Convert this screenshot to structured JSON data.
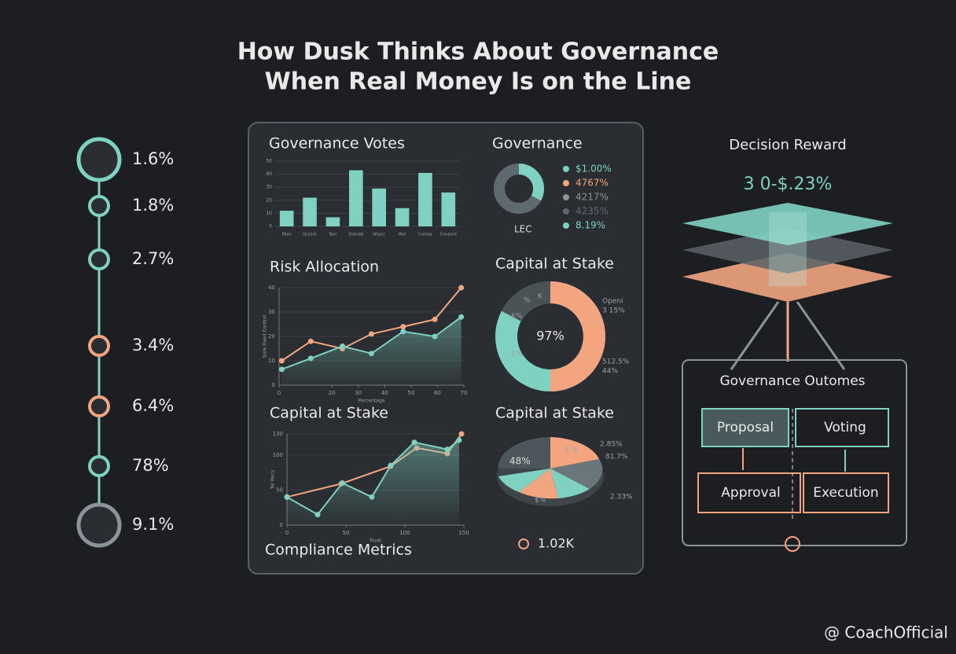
{
  "title_lines": [
    "How Dusk Thinks About Governance",
    "When Real Money Is on the Line"
  ],
  "timeline": [
    "1.6%",
    "1.8%",
    "2.7%",
    "3.4%",
    "6.4%",
    "78%",
    "9.1%"
  ],
  "bar_chart": {
    "type": "bar",
    "title": "Governance Votes",
    "categories": [
      "Mian",
      "Ocisick",
      "Nan",
      "Standal",
      "Nhanc",
      "Mat",
      "Conida",
      "Conpore"
    ],
    "values": [
      12,
      22,
      7,
      43,
      29,
      14,
      41,
      26
    ],
    "color": "#7fd1c2",
    "ylim": [
      0,
      50
    ],
    "yticks": [
      0,
      10,
      20,
      30,
      40,
      50
    ]
  },
  "governance_donut": {
    "title": "Governance",
    "center_label": "LEC",
    "legend": [
      {
        "label": "$1.00%",
        "color": "#7fd1c2"
      },
      {
        "label": "4767%",
        "color": "#f2a57f"
      },
      {
        "label": "4217%",
        "color": "#8a9499"
      },
      {
        "label": "4235%",
        "color": "#5f6a70"
      },
      {
        "label": "8.19%",
        "color": "#7fd1c2"
      }
    ]
  },
  "risk_chart": {
    "type": "line",
    "title": "Risk Allocation",
    "xlabel": "Percentage",
    "ylabel": "Sore Fixed Control",
    "xlim": [
      0,
      70
    ],
    "ylim": [
      0,
      40
    ],
    "xticks": [
      0,
      20,
      30,
      40,
      50,
      60,
      70
    ],
    "yticks": [
      0,
      10,
      20,
      30,
      40
    ],
    "series": [
      {
        "name": "Risk",
        "color": "#f2a57f",
        "x": [
          1,
          12,
          24,
          35,
          47,
          59,
          69
        ],
        "values": [
          10,
          18,
          15,
          21,
          24,
          27,
          40
        ]
      },
      {
        "name": "Allocation",
        "color": "#7fd1c2",
        "x": [
          1,
          12,
          24,
          35,
          47,
          59,
          69
        ],
        "values": [
          6.5,
          11,
          16,
          13,
          22,
          20,
          28
        ]
      }
    ]
  },
  "stake_donut": {
    "title": "Capital at Stake",
    "center_label": "97%",
    "labels": [
      "Openi",
      "3 15%",
      "512.5%",
      "44%",
      "$%",
      "$%",
      "%",
      "K"
    ]
  },
  "stake_line": {
    "type": "line",
    "title": "Capital at Stake",
    "xlabel": "Trusk",
    "ylabel": "Tel Recu",
    "xlim": [
      0,
      150
    ],
    "ylim": [
      0,
      130
    ],
    "xticks": [
      0,
      50,
      100,
      150
    ],
    "yticks": [
      0,
      50,
      100,
      130
    ],
    "series": [
      {
        "name": "Stake",
        "color": "#f2a57f",
        "x": [
          0,
          46,
          88,
          110,
          136,
          148
        ],
        "values": [
          40,
          59,
          84,
          110,
          102,
          130
        ]
      },
      {
        "name": "Capital",
        "color": "#7fd1c2",
        "x": [
          0,
          26,
          47,
          72,
          88,
          108,
          136,
          146
        ],
        "values": [
          40,
          15,
          60,
          40,
          85,
          118,
          108,
          121
        ]
      }
    ]
  },
  "stake_pie": {
    "title": "Capital at Stake",
    "labels": [
      "48%",
      "$ %",
      "2.85%",
      "81.7%",
      "2.33%",
      "$%"
    ],
    "footer": "1.02K"
  },
  "compliance_title": "Compliance Metrics",
  "decision": {
    "title": "Decision Reward",
    "value": "3 0-$.23%"
  },
  "outcomes": {
    "title": "Governance Outomes",
    "steps": [
      "Proposal",
      "Voting",
      "Approval",
      "Execution"
    ]
  },
  "footer": "@ CoachOfficial"
}
